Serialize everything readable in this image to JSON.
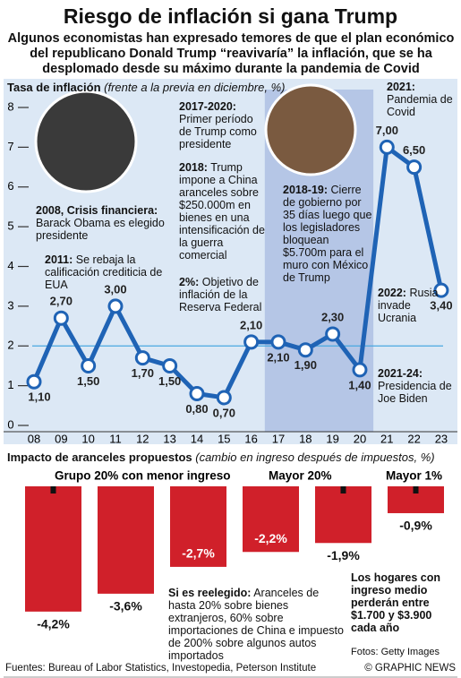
{
  "header": {
    "title": "Riesgo de inflación si gana Trump",
    "subtitle": "Algunos economistas han expresado temores de que el plan económico del republicano  Donald Trump “reavivaría” la inflación, que se ha desplomado desde su máximo durante la pandemia de Covid"
  },
  "chart_data": [
    {
      "type": "line",
      "title": "Tasa de inflación",
      "subtitle": "(frente a la previa en diciembre, %)",
      "categories": [
        "08",
        "09",
        "10",
        "11",
        "12",
        "13",
        "14",
        "15",
        "16",
        "17",
        "18",
        "19",
        "20",
        "21",
        "22",
        "23"
      ],
      "series": [
        {
          "name": null,
          "color": "#1f63b5",
          "values": [
            1.1,
            2.7,
            1.5,
            3.0,
            1.7,
            1.5,
            0.8,
            0.7,
            2.1,
            2.1,
            1.9,
            2.3,
            1.4,
            7.0,
            6.5,
            3.4
          ],
          "value_labels": [
            "1,10",
            "2,70",
            "1,50",
            "3,00",
            "1,70",
            "1,50",
            "0,80",
            "0,70",
            "2,10",
            "2,10",
            "1,90",
            "2,30",
            "1,40",
            "7,00",
            "6,50",
            "3,40"
          ]
        }
      ],
      "ylim": [
        0,
        8
      ],
      "yticks": [
        0,
        1,
        2,
        3,
        4,
        5,
        6,
        7,
        8
      ],
      "target": 2,
      "annotations": [
        {
          "head": "2008, Crisis financiera:",
          "body": "Barack Obama es elegido presidente"
        },
        {
          "head": "2011:",
          "body": "Se rebaja la calificación crediticia de EUA"
        },
        {
          "head": "2017-2020:",
          "body": "Primer período de Trump como presidente"
        },
        {
          "head": "2018:",
          "body": "Trump impone a China aranceles sobre $250.000m en bienes en una intensificación de la guerra comercial"
        },
        {
          "head": "2%:",
          "body": "Objetivo de inflación de la Reserva Federal"
        },
        {
          "head": "2018-19:",
          "body": "Cierre de gobierno por 35 días luego que los legisladores bloquean $5.700m para el muro con México de Trump"
        },
        {
          "head": "2021:",
          "body": "Pandemia de Covid"
        },
        {
          "head": "2022:",
          "body": "Rusia invade Ucrania"
        },
        {
          "head": "2021-24:",
          "body": "Presidencia de Joe Biden"
        }
      ]
    },
    {
      "type": "bar",
      "title": "Impacto de aranceles propuestos",
      "subtitle": "(cambio en ingreso después de impuestos, %)",
      "categories": [
        null,
        null,
        null,
        null,
        null,
        null
      ],
      "values": [
        -4.2,
        -3.6,
        -2.7,
        -2.2,
        -1.9,
        -0.9
      ],
      "value_labels": [
        "-4,2%",
        "-3,6%",
        "-2,7%",
        "-2,2%",
        "-1,9%",
        "-0,9%"
      ],
      "color": "#d0202a",
      "group_labels": [
        "Grupo 20% con menor ingreso",
        "Mayor 20%",
        "Mayor 1%"
      ],
      "annotations": [
        {
          "head": "Si es reelegido:",
          "body": "Aranceles de hasta 20% sobre bienes extranjeros, 60% sobre importaciones de China e impuesto de 200% sobre algunos autos importados"
        },
        {
          "head": "Los hogares con ingreso medio perderán entre $1.700 y $3.900 cada año",
          "body": null
        }
      ]
    }
  ],
  "footer": {
    "photos": "Fotos: Getty Images",
    "sources": "Fuentes: Bureau of Labor Statistics, Investopedia, Peterson Institute",
    "credit": "© GRAPHIC NEWS"
  }
}
